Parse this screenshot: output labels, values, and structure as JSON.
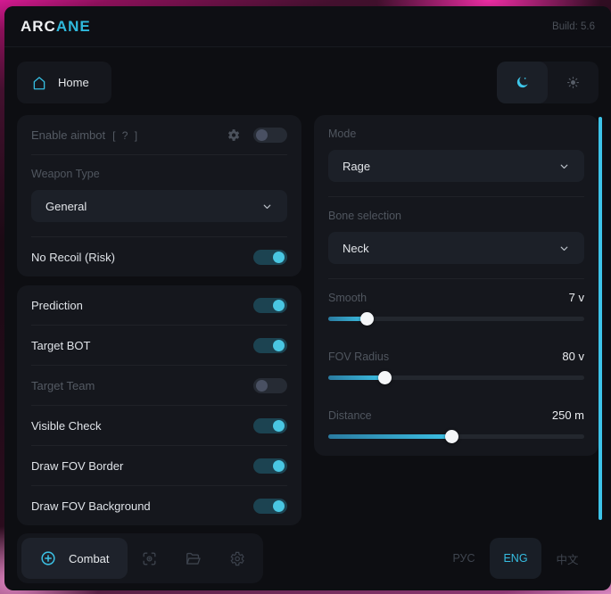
{
  "window": {
    "title_primary": "ARC",
    "title_accent": "ANE",
    "build": "Build: 5.6"
  },
  "nav": {
    "home": "Home"
  },
  "aimbot": {
    "enable_label": "Enable aimbot",
    "enable_hint": "[ ? ]",
    "enable_on": false,
    "weapon_type_label": "Weapon Type",
    "weapon_type_value": "General",
    "no_recoil_label": "No Recoil (Risk)",
    "no_recoil_on": true
  },
  "options": {
    "rows": [
      {
        "label": "Prediction",
        "on": true,
        "dimmed": false
      },
      {
        "label": "Target BOT",
        "on": true,
        "dimmed": false
      },
      {
        "label": "Target Team",
        "on": false,
        "dimmed": true
      },
      {
        "label": "Visible Check",
        "on": true,
        "dimmed": false
      },
      {
        "label": "Draw FOV Border",
        "on": true,
        "dimmed": false
      },
      {
        "label": "Draw FOV Background",
        "on": true,
        "dimmed": false
      }
    ]
  },
  "settings": {
    "mode_label": "Mode",
    "mode_value": "Rage",
    "bone_label": "Bone selection",
    "bone_value": "Neck",
    "sliders": [
      {
        "label": "Smooth",
        "value": "7 v",
        "percent": 15
      },
      {
        "label": "FOV Radius",
        "value": "80 v",
        "percent": 22
      },
      {
        "label": "Distance",
        "value": "250 m",
        "percent": 48
      }
    ]
  },
  "footer": {
    "combat": "Combat",
    "languages": [
      {
        "label": "РУС",
        "active": false
      },
      {
        "label": "ENG",
        "active": true
      },
      {
        "label": "中文",
        "active": false
      }
    ]
  },
  "colors": {
    "accent": "#3cc1e4",
    "toggle_on_track": "#1c4351",
    "toggle_knob_on": "#49c6e2",
    "card_bg": "#15171d",
    "window_bg": "#0d0e12",
    "scrollbar": "#3dc3e8"
  }
}
